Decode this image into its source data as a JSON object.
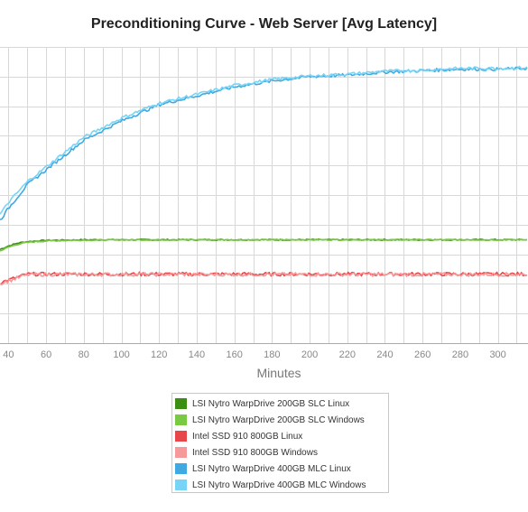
{
  "chart_data": {
    "type": "line",
    "title": "Preconditioning Curve - Web Server [Avg Latency]",
    "xlabel": "Minutes",
    "ylabel": "",
    "x_ticks": [
      40,
      60,
      80,
      100,
      120,
      140,
      160,
      180,
      200,
      220,
      240,
      260,
      280,
      300
    ],
    "x_tick_labels": [
      "40",
      "60",
      "80",
      "100",
      "120",
      "140",
      "160",
      "180",
      "200",
      "220",
      "240",
      "260",
      "280",
      "300"
    ],
    "xlim": [
      35.5,
      316
    ],
    "grid": true,
    "legend_position": "bottom-center",
    "series": [
      {
        "name": "LSI Nytro WarpDrive 200GB SLC Linux",
        "color": "#3a8e12",
        "x": [
          35,
          40,
          45,
          50,
          60,
          80,
          120,
          200,
          316
        ],
        "y": [
          3.15,
          3.28,
          3.38,
          3.43,
          3.47,
          3.49,
          3.49,
          3.49,
          3.49
        ]
      },
      {
        "name": "LSI Nytro WarpDrive 200GB SLC Windows",
        "color": "#7ac943",
        "x": [
          35,
          40,
          45,
          50,
          60,
          80,
          120,
          200,
          316
        ],
        "y": [
          3.1,
          3.24,
          3.34,
          3.4,
          3.45,
          3.48,
          3.49,
          3.49,
          3.49
        ]
      },
      {
        "name": "Intel SSD 910 800GB Linux",
        "color": "#e8474a",
        "x": [
          35,
          40,
          50,
          60,
          100,
          200,
          316
        ],
        "y": [
          2.03,
          2.13,
          2.33,
          2.33,
          2.33,
          2.33,
          2.33
        ]
      },
      {
        "name": "Intel SSD 910 800GB Windows",
        "color": "#f5999a",
        "x": [
          35,
          40,
          50,
          60,
          100,
          200,
          316
        ],
        "y": [
          2.0,
          2.1,
          2.31,
          2.32,
          2.32,
          2.32,
          2.32
        ]
      },
      {
        "name": "LSI Nytro WarpDrive 400GB MLC Linux",
        "color": "#3fa9e0",
        "x": [
          35,
          40,
          50,
          60,
          70,
          80,
          100,
          120,
          140,
          160,
          180,
          200,
          220,
          240,
          260,
          280,
          300,
          316
        ],
        "y": [
          4.1,
          4.55,
          5.35,
          5.85,
          6.35,
          6.85,
          7.5,
          8.05,
          8.35,
          8.65,
          8.85,
          9.0,
          9.05,
          9.15,
          9.2,
          9.25,
          9.25,
          9.28
        ]
      },
      {
        "name": "LSI Nytro WarpDrive 400GB MLC Windows",
        "color": "#78d4f6",
        "x": [
          35,
          40,
          50,
          60,
          70,
          80,
          100,
          120,
          140,
          160,
          180,
          200,
          220,
          240,
          260,
          280,
          300,
          316
        ],
        "y": [
          4.3,
          4.75,
          5.45,
          5.95,
          6.45,
          6.95,
          7.6,
          8.1,
          8.4,
          8.7,
          8.9,
          9.02,
          9.08,
          9.18,
          9.22,
          9.28,
          9.28,
          9.3
        ]
      }
    ]
  }
}
